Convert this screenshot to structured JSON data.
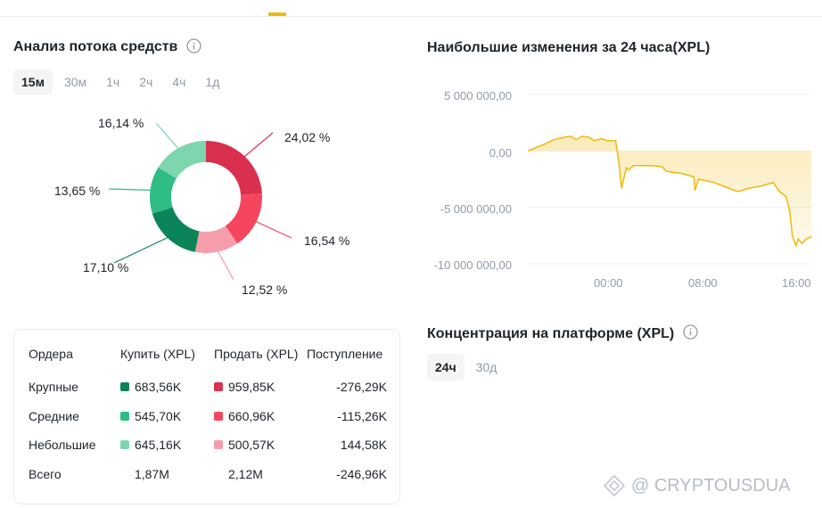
{
  "flow": {
    "title": "Анализ потока средств",
    "tabs": [
      "15м",
      "30м",
      "1ч",
      "2ч",
      "4ч",
      "1д"
    ],
    "active_tab": "15м",
    "segments": [
      {
        "label": "24,02 %",
        "value": 24.02,
        "color": "#d9304f"
      },
      {
        "label": "16,54 %",
        "value": 16.54,
        "color": "#f6465d"
      },
      {
        "label": "12,52 %",
        "value": 12.52,
        "color": "#f59ea9"
      },
      {
        "label": "17,10 %",
        "value": 17.1,
        "color": "#0b8457"
      },
      {
        "label": "13,65 %",
        "value": 13.65,
        "color": "#2ebd85"
      },
      {
        "label": "16,14 %",
        "value": 16.14,
        "color": "#7ed6ae"
      }
    ]
  },
  "orders_table": {
    "headers": [
      "Ордера",
      "Купить (XPL)",
      "Продать (XPL)",
      "Поступление"
    ],
    "rows": [
      {
        "name": "Крупные",
        "buy": "683,56K",
        "sell": "959,85K",
        "inflow": "-276,29K",
        "buy_color": "#0b8457",
        "sell_color": "#d9304f"
      },
      {
        "name": "Средние",
        "buy": "545,70K",
        "sell": "660,96K",
        "inflow": "-115,26K",
        "buy_color": "#2ebd85",
        "sell_color": "#f6465d"
      },
      {
        "name": "Небольшие",
        "buy": "645,16K",
        "sell": "500,57K",
        "inflow": "144,58K",
        "buy_color": "#7ed6ae",
        "sell_color": "#f59ea9"
      }
    ],
    "total": {
      "name": "Всего",
      "buy": "1,87M",
      "sell": "2,12M",
      "inflow": "-246,96K"
    }
  },
  "changes": {
    "title": "Наибольшие изменения за 24 часа(XPL)"
  },
  "chart_data": {
    "type": "area",
    "title": "Наибольшие изменения за 24 часа(XPL)",
    "xlabel": "",
    "ylabel": "",
    "y_ticks": [
      "5 000 000,00",
      "0,00",
      "-5 000 000,00",
      "-10 000 000,00"
    ],
    "y_tick_values": [
      5000000,
      0,
      -5000000,
      -10000000
    ],
    "x_ticks": [
      "00:00",
      "08:00",
      "16:00"
    ],
    "x_tick_values": [
      0,
      8,
      16
    ],
    "ylim": [
      -10000000,
      5000000
    ],
    "xlim": [
      -7.2,
      16.7
    ],
    "grid": true,
    "color": "#f0b90b",
    "x": [
      -7.2,
      -6.0,
      -5.0,
      -4.2,
      -3.6,
      -3.1,
      -2.6,
      -2.0,
      -1.6,
      -1.0,
      -0.5,
      0.2,
      0.5,
      0.7,
      1.1,
      1.3,
      1.7,
      3.0,
      4.1,
      4.5,
      5.0,
      5.8,
      6.8,
      6.9,
      7.2,
      8.5,
      9.5,
      10.5,
      11.5,
      12.5,
      13.5,
      14.0,
      14.3,
      14.6,
      14.9,
      15.1,
      15.4,
      15.6,
      15.9,
      16.3,
      16.7
    ],
    "y": [
      0,
      500000,
      1000000,
      1200000,
      1300000,
      1000000,
      1300000,
      1200000,
      900000,
      1100000,
      900000,
      900000,
      -1200000,
      -3300000,
      -1500000,
      -1700000,
      -1300000,
      -1300000,
      -1400000,
      -1800000,
      -1900000,
      -2000000,
      -2300000,
      -3500000,
      -2500000,
      -2800000,
      -3200000,
      -3600000,
      -3300000,
      -3100000,
      -2800000,
      -3600000,
      -3800000,
      -4100000,
      -5500000,
      -7500000,
      -8400000,
      -7800000,
      -8200000,
      -7800000,
      -7600000
    ]
  },
  "concentration": {
    "title": "Концентрация на платформе (XPL)",
    "tabs": [
      "24ч",
      "30д"
    ],
    "active_tab": "24ч"
  },
  "watermark": {
    "text": "@ CRYPTOUSDUA"
  },
  "colors": {
    "accent": "#f0b90b",
    "text": "#1e2329",
    "muted": "#929aa5"
  }
}
